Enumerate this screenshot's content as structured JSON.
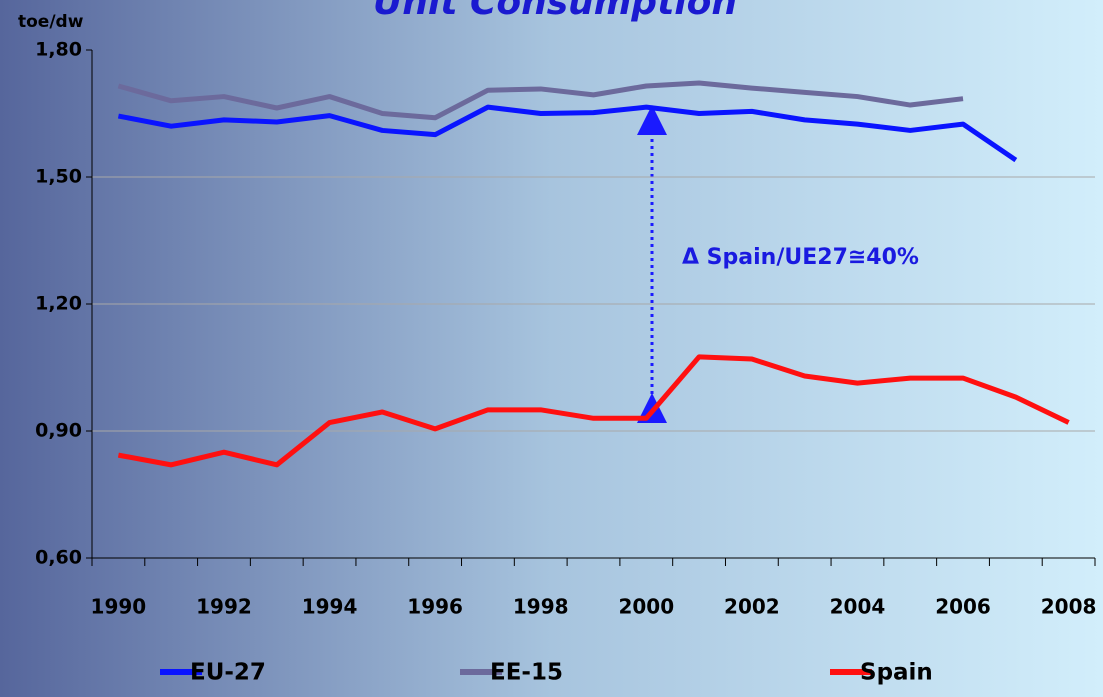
{
  "chart_data": {
    "type": "line",
    "title": "Unit Consumption",
    "y_label": "toe/dw",
    "annotation": "Δ Spain/UE27≅40%",
    "categories": [
      "1990",
      null,
      "1992",
      null,
      "1994",
      null,
      "1996",
      null,
      "1998",
      null,
      "2000",
      null,
      "2002",
      null,
      "2004",
      null,
      "2006",
      null,
      "2008"
    ],
    "series": [
      {
        "name": "EU-27",
        "color": "#0a14ff",
        "values": [
          1.644,
          1.62,
          1.635,
          1.63,
          1.645,
          1.61,
          1.6,
          1.665,
          1.65,
          1.652,
          1.665,
          1.65,
          1.655,
          1.635,
          1.625,
          1.61,
          1.625,
          1.54,
          null
        ]
      },
      {
        "name": "EE-15",
        "color": "#6c6a9c",
        "values": [
          1.715,
          1.68,
          1.69,
          1.663,
          1.69,
          1.65,
          1.64,
          1.705,
          1.708,
          1.694,
          1.715,
          1.722,
          1.71,
          1.7,
          1.69,
          1.67,
          1.685,
          null,
          null
        ]
      },
      {
        "name": "Spain",
        "color": "#ff1010",
        "values": [
          0.843,
          0.82,
          0.85,
          0.82,
          0.92,
          0.945,
          0.905,
          0.95,
          0.95,
          0.93,
          0.93,
          1.075,
          1.07,
          1.03,
          1.013,
          1.025,
          1.025,
          0.98,
          0.92
        ]
      }
    ],
    "ylim": [
      0.6,
      1.8
    ],
    "yticks": [
      {
        "value": 0.6,
        "label": "0,60"
      },
      {
        "value": 0.9,
        "label": "0,90"
      },
      {
        "value": 1.2,
        "label": "1,20"
      },
      {
        "value": 1.5,
        "label": "1,50"
      },
      {
        "value": 1.8,
        "label": "1,80"
      }
    ],
    "grid": true
  }
}
